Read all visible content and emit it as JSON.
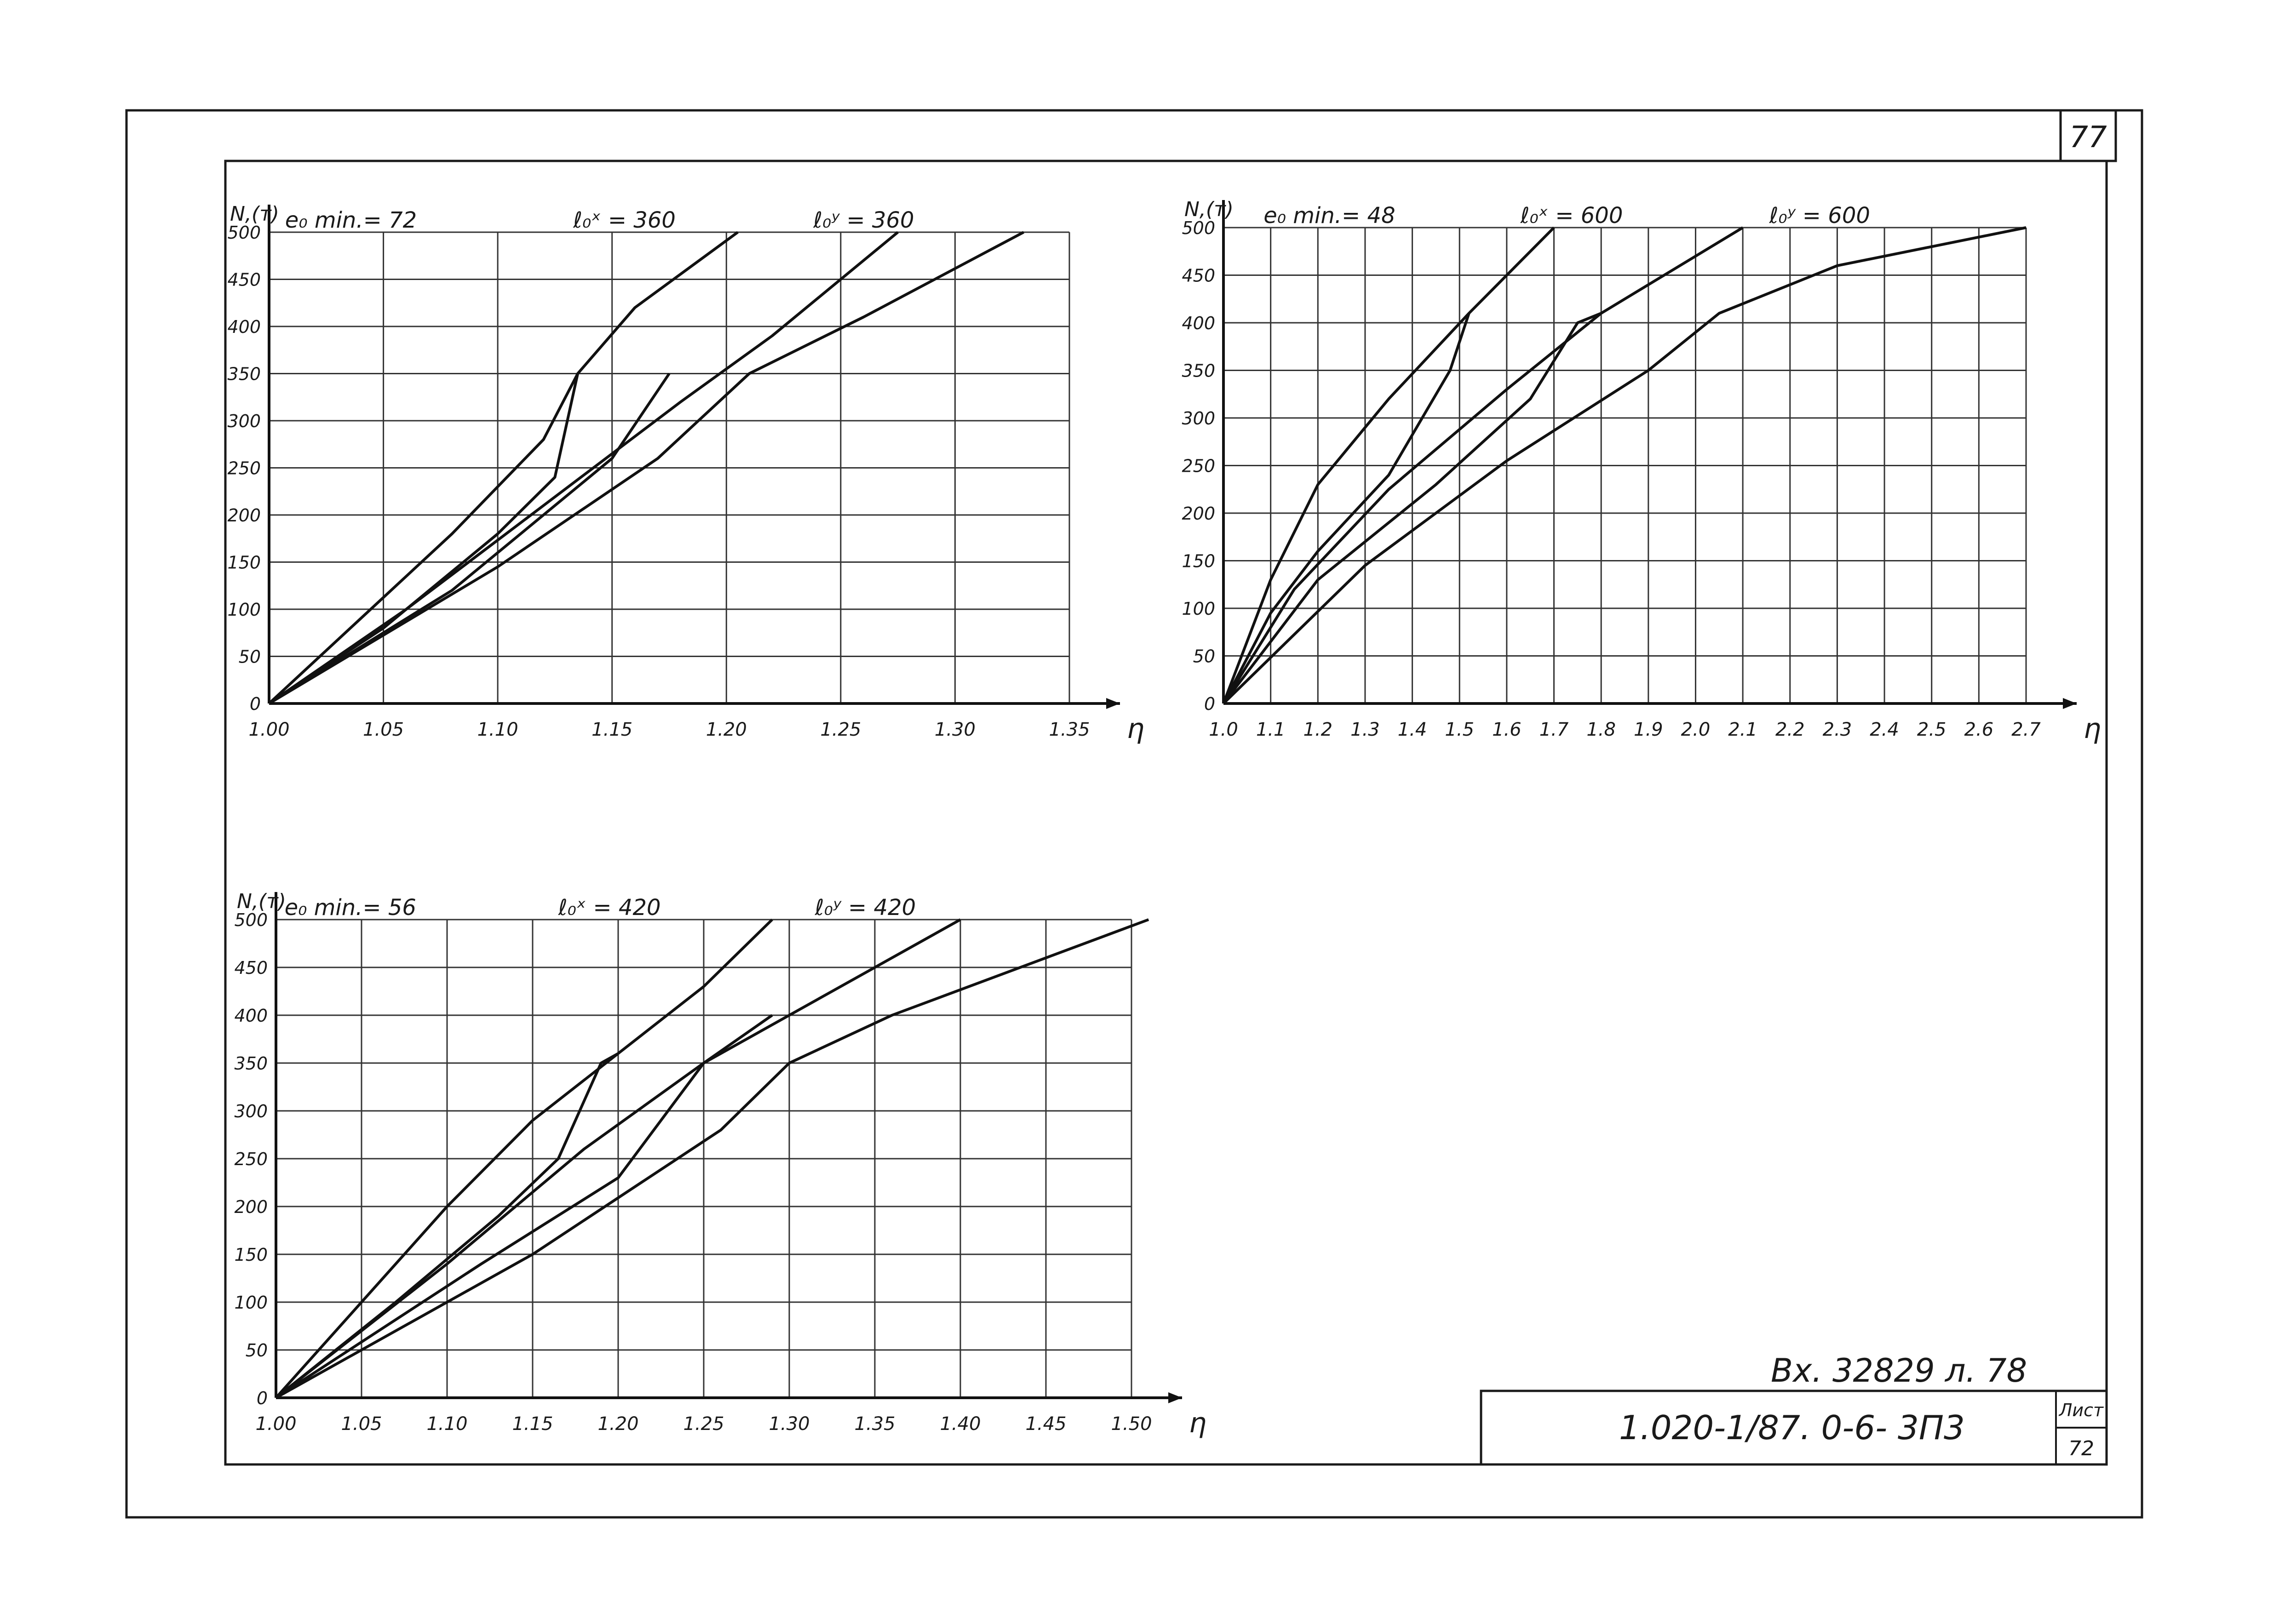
{
  "sheet": {
    "page_number": "77",
    "inbox_note": "Вх. 32829 л. 78",
    "designation": "1.020-1/87. 0-6- 3П3",
    "sheet_label": "Лист",
    "sheet_number": "72"
  },
  "chart_data": [
    {
      "type": "line",
      "ylabel": "N,(т)",
      "xlabel": "η",
      "xlim": [
        1.0,
        1.35
      ],
      "ylim": [
        0,
        500
      ],
      "xticks": [
        "1.00",
        "1.05",
        "1.10",
        "1.15",
        "1.20",
        "1.25",
        "1.30",
        "1.35"
      ],
      "yticks": [
        "0",
        "50",
        "100",
        "150",
        "200",
        "250",
        "300",
        "350",
        "400",
        "450",
        "500"
      ],
      "annotations": [
        "e₀ min.= 72",
        "ℓ₀ˣ = 360",
        "ℓ₀ʸ = 360"
      ],
      "grid": true,
      "series": [
        {
          "points": [
            [
              1.0,
              0
            ],
            [
              1.04,
              90
            ],
            [
              1.08,
              180
            ],
            [
              1.12,
              280
            ],
            [
              1.135,
              350
            ],
            [
              1.16,
              420
            ],
            [
              1.205,
              500
            ]
          ]
        },
        {
          "points": [
            [
              1.0,
              0
            ],
            [
              1.05,
              80
            ],
            [
              1.1,
              180
            ],
            [
              1.125,
              240
            ],
            [
              1.135,
              350
            ]
          ]
        },
        {
          "points": [
            [
              1.0,
              0
            ],
            [
              1.06,
              100
            ],
            [
              1.12,
              210
            ],
            [
              1.18,
              320
            ],
            [
              1.22,
              390
            ],
            [
              1.275,
              500
            ]
          ]
        },
        {
          "points": [
            [
              1.0,
              0
            ],
            [
              1.08,
              120
            ],
            [
              1.15,
              260
            ],
            [
              1.175,
              350
            ]
          ]
        },
        {
          "points": [
            [
              1.0,
              0
            ],
            [
              1.1,
              145
            ],
            [
              1.17,
              260
            ],
            [
              1.21,
              350
            ],
            [
              1.26,
              410
            ],
            [
              1.33,
              500
            ]
          ]
        }
      ]
    },
    {
      "type": "line",
      "ylabel": "N,(т)",
      "xlabel": "η",
      "xlim": [
        1.0,
        2.7
      ],
      "ylim": [
        0,
        500
      ],
      "xticks": [
        "1.0",
        "1.1",
        "1.2",
        "1.3",
        "1.4",
        "1.5",
        "1.6",
        "1.7",
        "1.8",
        "1.9",
        "2.0",
        "2.1",
        "2.2",
        "2.3",
        "2.4",
        "2.5",
        "2.6",
        "2.7"
      ],
      "yticks": [
        "0",
        "50",
        "100",
        "150",
        "200",
        "250",
        "300",
        "350",
        "400",
        "450",
        "500"
      ],
      "annotations": [
        "e₀ min.= 48",
        "ℓ₀ˣ = 600",
        "ℓ₀ʸ = 600"
      ],
      "grid": true,
      "series": [
        {
          "points": [
            [
              1.0,
              0
            ],
            [
              1.1,
              130
            ],
            [
              1.2,
              230
            ],
            [
              1.35,
              320
            ],
            [
              1.52,
              410
            ],
            [
              1.6,
              450
            ],
            [
              1.7,
              500
            ]
          ]
        },
        {
          "points": [
            [
              1.0,
              0
            ],
            [
              1.1,
              95
            ],
            [
              1.2,
              160
            ],
            [
              1.35,
              240
            ],
            [
              1.48,
              350
            ],
            [
              1.52,
              410
            ]
          ]
        },
        {
          "points": [
            [
              1.0,
              0
            ],
            [
              1.15,
              120
            ],
            [
              1.35,
              225
            ],
            [
              1.6,
              330
            ],
            [
              1.8,
              410
            ],
            [
              1.9,
              440
            ],
            [
              2.0,
              470
            ],
            [
              2.1,
              500
            ]
          ]
        },
        {
          "points": [
            [
              1.0,
              0
            ],
            [
              1.2,
              130
            ],
            [
              1.45,
              230
            ],
            [
              1.65,
              320
            ],
            [
              1.75,
              400
            ],
            [
              1.8,
              410
            ]
          ]
        },
        {
          "points": [
            [
              1.0,
              0
            ],
            [
              1.3,
              145
            ],
            [
              1.6,
              255
            ],
            [
              1.9,
              350
            ],
            [
              2.05,
              410
            ],
            [
              2.3,
              460
            ],
            [
              2.7,
              500
            ]
          ]
        }
      ]
    },
    {
      "type": "line",
      "ylabel": "N,(т)",
      "xlabel": "η",
      "xlim": [
        1.0,
        1.5
      ],
      "ylim": [
        0,
        500
      ],
      "xticks": [
        "1.00",
        "1.05",
        "1.10",
        "1.15",
        "1.20",
        "1.25",
        "1.30",
        "1.35",
        "1.40",
        "1.45",
        "1.50"
      ],
      "yticks": [
        "0",
        "50",
        "100",
        "150",
        "200",
        "250",
        "300",
        "350",
        "400",
        "450",
        "500"
      ],
      "annotations": [
        "e₀ min.= 56",
        "ℓ₀ˣ = 420",
        "ℓ₀ʸ = 420"
      ],
      "grid": true,
      "series": [
        {
          "points": [
            [
              1.0,
              0
            ],
            [
              1.05,
              100
            ],
            [
              1.1,
              200
            ],
            [
              1.15,
              290
            ],
            [
              1.2,
              360
            ],
            [
              1.25,
              430
            ],
            [
              1.29,
              500
            ]
          ]
        },
        {
          "points": [
            [
              1.0,
              0
            ],
            [
              1.07,
              100
            ],
            [
              1.13,
              190
            ],
            [
              1.165,
              250
            ],
            [
              1.19,
              350
            ],
            [
              1.2,
              360
            ]
          ]
        },
        {
          "points": [
            [
              1.0,
              0
            ],
            [
              1.1,
              140
            ],
            [
              1.18,
              260
            ],
            [
              1.25,
              350
            ],
            [
              1.3,
              400
            ],
            [
              1.4,
              500
            ]
          ]
        },
        {
          "points": [
            [
              1.0,
              0
            ],
            [
              1.12,
              140
            ],
            [
              1.2,
              230
            ],
            [
              1.25,
              350
            ],
            [
              1.29,
              400
            ]
          ]
        },
        {
          "points": [
            [
              1.0,
              0
            ],
            [
              1.15,
              150
            ],
            [
              1.26,
              280
            ],
            [
              1.3,
              350
            ],
            [
              1.36,
              400
            ],
            [
              1.45,
              460
            ],
            [
              1.51,
              500
            ]
          ]
        }
      ]
    }
  ]
}
